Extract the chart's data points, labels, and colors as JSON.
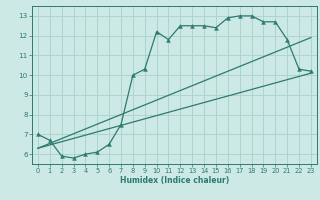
{
  "xlabel": "Humidex (Indice chaleur)",
  "bg_color": "#cce9e5",
  "line_color": "#2d7a70",
  "grid_color": "#aed4cf",
  "xlim": [
    -0.5,
    23.5
  ],
  "ylim": [
    5.5,
    13.5
  ],
  "xticks": [
    0,
    1,
    2,
    3,
    4,
    5,
    6,
    7,
    8,
    9,
    10,
    11,
    12,
    13,
    14,
    15,
    16,
    17,
    18,
    19,
    20,
    21,
    22,
    23
  ],
  "yticks": [
    6,
    7,
    8,
    9,
    10,
    11,
    12,
    13
  ],
  "main_x": [
    0,
    1,
    2,
    3,
    4,
    5,
    6,
    7,
    8,
    9,
    10,
    11,
    12,
    13,
    14,
    15,
    16,
    17,
    18,
    19,
    20,
    21,
    22,
    23
  ],
  "main_y": [
    7.0,
    6.7,
    5.9,
    5.8,
    6.0,
    6.1,
    6.5,
    7.5,
    10.0,
    10.3,
    12.2,
    11.8,
    12.5,
    12.5,
    12.5,
    12.4,
    12.9,
    13.0,
    13.0,
    12.7,
    12.7,
    11.8,
    10.3,
    10.2
  ],
  "line1_x": [
    0,
    23
  ],
  "line1_y": [
    6.3,
    10.1
  ],
  "line2_x": [
    0,
    23
  ],
  "line2_y": [
    6.3,
    11.9
  ]
}
